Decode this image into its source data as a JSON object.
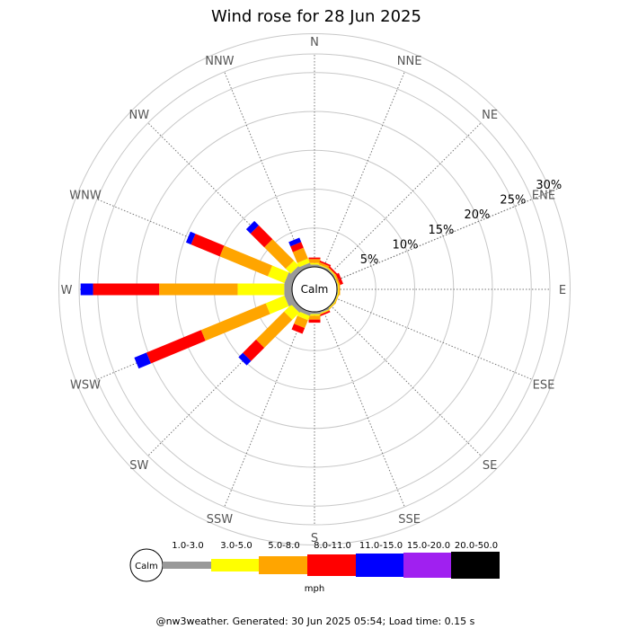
{
  "chart_data": {
    "type": "windrose",
    "title": "Wind rose for 28 Jun 2025",
    "directions": [
      "N",
      "NNE",
      "NE",
      "ENE",
      "E",
      "ESE",
      "SE",
      "SSE",
      "S",
      "SSW",
      "SW",
      "WSW",
      "W",
      "WNW",
      "NW",
      "NNW"
    ],
    "radial_axis": {
      "ticks": [
        5,
        10,
        15,
        20,
        25,
        30
      ],
      "tick_labels": [
        "5%",
        "10%",
        "15%",
        "20%",
        "25%",
        "30%"
      ],
      "max": 30,
      "label_direction": "ENE"
    },
    "calm_label": "Calm",
    "unit": "mph",
    "speed_bins": [
      {
        "label": "1.0-3.0",
        "color": "#999999"
      },
      {
        "label": "3.0-5.0",
        "color": "#ffff00"
      },
      {
        "label": "5.0-8.0",
        "color": "#ffa500"
      },
      {
        "label": "8.0-11.0",
        "color": "#ff0000"
      },
      {
        "label": "11.0-15.0",
        "color": "#0000ff"
      },
      {
        "label": "15.0-20.0",
        "color": "#a020f0"
      },
      {
        "label": "20.0-50.0",
        "color": "#000000"
      }
    ],
    "cumulative_percent": {
      "N": [
        0.3,
        0.5,
        1.0,
        1.2,
        1.2,
        1.2,
        1.2
      ],
      "NNE": [
        0.2,
        0.3,
        0.6,
        0.8,
        0.8,
        0.8,
        0.8
      ],
      "NE": [
        0.2,
        0.3,
        0.4,
        0.6,
        0.6,
        0.6,
        0.6
      ],
      "ENE": [
        0.1,
        0.2,
        0.4,
        0.8,
        0.8,
        0.8,
        0.8
      ],
      "E": [
        0.1,
        0.2,
        0.4,
        0.4,
        0.4,
        0.4,
        0.4
      ],
      "ESE": [
        0.1,
        0.2,
        0.3,
        0.3,
        0.3,
        0.3,
        0.3
      ],
      "SE": [
        0.1,
        0.2,
        0.3,
        0.3,
        0.3,
        0.3,
        0.3
      ],
      "SSE": [
        0.2,
        0.3,
        0.4,
        0.6,
        0.6,
        0.6,
        0.6
      ],
      "S": [
        0.3,
        0.5,
        1.0,
        1.4,
        1.4,
        1.4,
        1.4
      ],
      "SSW": [
        0.5,
        1.1,
        2.2,
        3.0,
        3.0,
        3.0,
        3.0
      ],
      "SW": [
        0.6,
        1.9,
        7.0,
        9.4,
        10.2,
        10.2,
        10.2
      ],
      "WSW": [
        1.0,
        3.6,
        12.6,
        20.2,
        21.9,
        21.9,
        21.9
      ],
      "W": [
        1.0,
        7.0,
        17.1,
        25.6,
        27.2,
        27.2,
        27.2
      ],
      "WNW": [
        1.0,
        3.3,
        10.0,
        14.0,
        14.7,
        14.7,
        14.7
      ],
      "NW": [
        0.7,
        1.6,
        5.5,
        8.0,
        8.8,
        8.8,
        8.8
      ],
      "NNW": [
        0.5,
        1.1,
        2.6,
        3.4,
        4.0,
        4.0,
        4.0
      ]
    }
  },
  "footer": "@nw3weather. Generated: 30 Jun 2025 05:54; Load time: 0.15 s"
}
